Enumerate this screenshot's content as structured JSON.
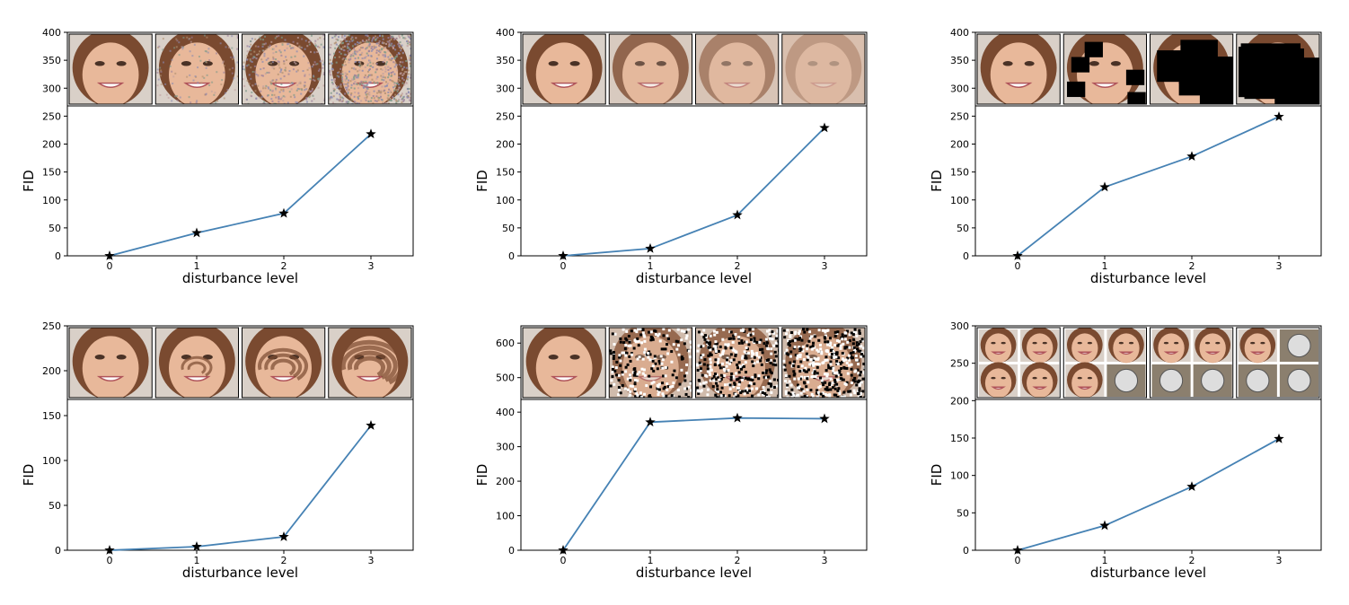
{
  "chart_data": [
    {
      "type": "line",
      "xlabel": "disturbance level",
      "ylabel": "FID",
      "x": [
        0,
        1,
        2,
        3
      ],
      "values": [
        0,
        41,
        76,
        218
      ],
      "ylim": [
        0,
        400
      ],
      "yticks": [
        0,
        50,
        100,
        150,
        200,
        250,
        300,
        350,
        400
      ],
      "xticks": [
        0,
        1,
        2,
        3
      ],
      "disturbance": "gaussian-noise",
      "inset_images": [
        "face-level-0",
        "face-noise-level-1",
        "face-noise-level-2",
        "face-noise-level-3"
      ]
    },
    {
      "type": "line",
      "xlabel": "disturbance level",
      "ylabel": "FID",
      "x": [
        0,
        1,
        2,
        3
      ],
      "values": [
        0,
        13,
        73,
        229
      ],
      "ylim": [
        0,
        400
      ],
      "yticks": [
        0,
        50,
        100,
        150,
        200,
        250,
        300,
        350,
        400
      ],
      "xticks": [
        0,
        1,
        2,
        3
      ],
      "disturbance": "gaussian-blur",
      "inset_images": [
        "face-level-0",
        "face-blur-level-1",
        "face-blur-level-2",
        "face-blur-level-3"
      ]
    },
    {
      "type": "line",
      "xlabel": "disturbance level",
      "ylabel": "FID",
      "x": [
        0,
        1,
        2,
        3
      ],
      "values": [
        0,
        123,
        178,
        249
      ],
      "ylim": [
        0,
        400
      ],
      "yticks": [
        0,
        50,
        100,
        150,
        200,
        250,
        300,
        350,
        400
      ],
      "xticks": [
        0,
        1,
        2,
        3
      ],
      "disturbance": "black-rectangles",
      "inset_images": [
        "face-level-0",
        "face-rectangles-level-1",
        "face-rectangles-level-2",
        "face-rectangles-level-3"
      ]
    },
    {
      "type": "line",
      "xlabel": "disturbance level",
      "ylabel": "FID",
      "x": [
        0,
        1,
        2,
        3
      ],
      "values": [
        0,
        4,
        15,
        139
      ],
      "ylim": [
        0,
        250
      ],
      "yticks": [
        0,
        50,
        100,
        150,
        200,
        250
      ],
      "xticks": [
        0,
        1,
        2,
        3
      ],
      "disturbance": "swirl",
      "inset_images": [
        "face-level-0",
        "face-swirl-level-1",
        "face-swirl-level-2",
        "face-swirl-level-3"
      ]
    },
    {
      "type": "line",
      "xlabel": "disturbance level",
      "ylabel": "FID",
      "x": [
        0,
        1,
        2,
        3
      ],
      "values": [
        0,
        371,
        383,
        381
      ],
      "ylim": [
        0,
        650
      ],
      "yticks": [
        0,
        100,
        200,
        300,
        400,
        500,
        600
      ],
      "xticks": [
        0,
        1,
        2,
        3
      ],
      "disturbance": "salt-and-pepper-noise",
      "inset_images": [
        "face-level-0",
        "face-saltpepper-level-1",
        "face-saltpepper-level-2",
        "face-saltpepper-level-3"
      ]
    },
    {
      "type": "line",
      "xlabel": "disturbance level",
      "ylabel": "FID",
      "x": [
        0,
        1,
        2,
        3
      ],
      "values": [
        0,
        33,
        85,
        149
      ],
      "ylim": [
        0,
        300
      ],
      "yticks": [
        0,
        50,
        100,
        150,
        200,
        250,
        300
      ],
      "xticks": [
        0,
        1,
        2,
        3
      ],
      "disturbance": "imagenet-contamination",
      "inset_images": [
        "face-grid-level-0",
        "face-grid-level-1",
        "face-grid-level-2",
        "face-grid-level-3"
      ]
    }
  ],
  "colors": {
    "line": "#4682b4",
    "marker": "#000000",
    "axes": "#000000",
    "skin": "#e8b89a",
    "hair": "#7a4a30",
    "background": "#ffffff"
  }
}
